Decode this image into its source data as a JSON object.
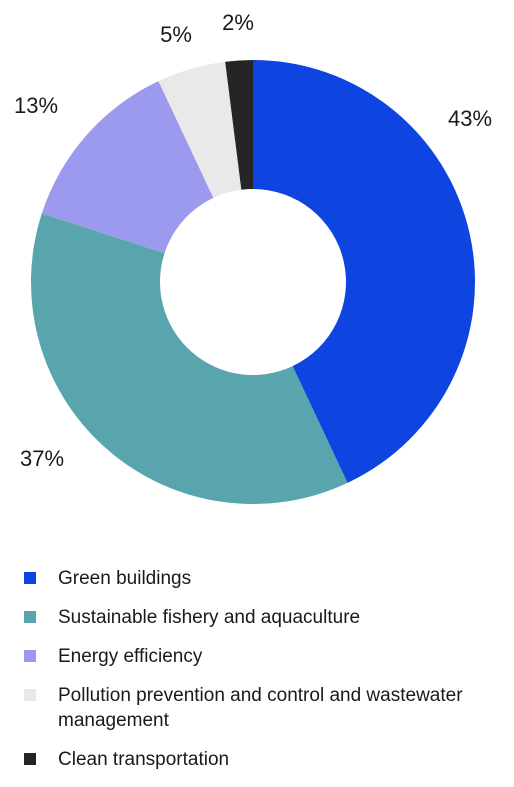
{
  "chart_data": {
    "type": "pie",
    "categories": [
      "Green buildings",
      "Sustainable fishery and aquaculture",
      "Energy efficiency",
      "Pollution prevention and control and wastewater management",
      "Clean transportation"
    ],
    "values": [
      43,
      37,
      13,
      5,
      2
    ],
    "labels": [
      "43%",
      "37%",
      "13%",
      "5%",
      "2%"
    ],
    "colors": [
      "#0E44E0",
      "#58A5AE",
      "#9B9AEE",
      "#E9E9E9",
      "#252525"
    ],
    "donut": true,
    "legend_position": "bottom"
  }
}
